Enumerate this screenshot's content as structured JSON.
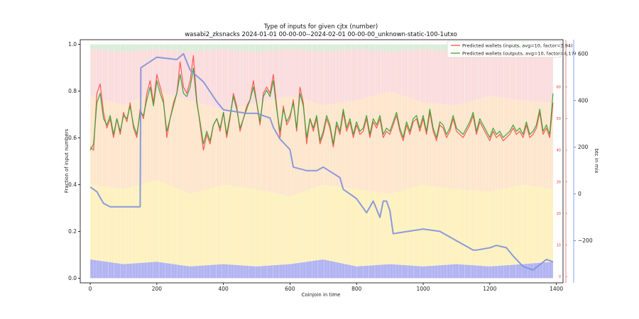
{
  "chart_data": {
    "type": "line",
    "title": "Type of inputs for given cjtx (number)",
    "subtitle": "wasabi2_zksnacks 2024-01-01 00-00-00--2024-02-01 00-00-00_unknown-static-100-1utxo",
    "xlabel": "Coinjoin in time",
    "ylabel": "Fraction of input numbers",
    "y2label": "btc in mix",
    "xlim": [
      -30,
      1420
    ],
    "ylim": [
      -0.02,
      1.02
    ],
    "y2lim": [
      -380,
      660
    ],
    "y3lim": [
      -2,
      75
    ],
    "x_ticks": [
      0,
      200,
      400,
      600,
      800,
      1000,
      1200,
      1400
    ],
    "y_ticks": [
      "0.0",
      "0.2",
      "0.4",
      "0.6",
      "0.8",
      "1.0"
    ],
    "y2_ticks": [
      -200,
      0,
      200,
      400,
      600
    ],
    "y2_tick_labels": [
      "−200",
      "0",
      "200",
      "400",
      "600"
    ],
    "y3_ticks": [
      0,
      10,
      20,
      30,
      40,
      50,
      60,
      70
    ],
    "legend_position": "top-right",
    "colors": {
      "wallets_inputs": "#ff4040",
      "wallets_outputs": "#2ca02c",
      "btc_in_mix": "#8090dd",
      "axis_right": "#4169e1",
      "axis_wallets": "#e33c3c",
      "band_bottom": "#a8acf0",
      "band_middle": "#fdf0b8",
      "band_upper": "#fce0c0",
      "band_top": "#f9d4d4",
      "band_cap": "#cfe8cf"
    },
    "series": [
      {
        "name": "Predicted wallets (inputs, avg=10, factor=3.94)",
        "axis": "wallets",
        "x": [
          0,
          10,
          20,
          30,
          40,
          50,
          60,
          70,
          80,
          90,
          100,
          110,
          120,
          130,
          140,
          150,
          160,
          170,
          180,
          190,
          200,
          210,
          220,
          230,
          240,
          250,
          260,
          270,
          280,
          290,
          300,
          310,
          320,
          330,
          340,
          350,
          360,
          370,
          380,
          390,
          400,
          410,
          420,
          430,
          440,
          450,
          460,
          470,
          480,
          490,
          500,
          510,
          520,
          530,
          540,
          550,
          560,
          570,
          580,
          590,
          600,
          610,
          620,
          630,
          640,
          650,
          660,
          670,
          680,
          690,
          700,
          710,
          720,
          730,
          740,
          750,
          760,
          770,
          780,
          790,
          800,
          810,
          820,
          830,
          840,
          850,
          860,
          870,
          880,
          890,
          900,
          910,
          920,
          930,
          940,
          950,
          960,
          970,
          980,
          990,
          1000,
          1010,
          1020,
          1030,
          1040,
          1050,
          1060,
          1070,
          1080,
          1090,
          1100,
          1110,
          1120,
          1130,
          1140,
          1150,
          1160,
          1170,
          1180,
          1190,
          1200,
          1210,
          1220,
          1230,
          1240,
          1250,
          1260,
          1270,
          1280,
          1290,
          1300,
          1310,
          1320,
          1330,
          1340,
          1350,
          1360,
          1370,
          1380,
          1390
        ],
        "values": [
          41,
          40,
          58,
          61,
          52,
          47,
          50,
          44,
          50,
          45,
          52,
          49,
          55,
          47,
          44,
          53,
          50,
          58,
          62,
          55,
          64,
          60,
          56,
          44,
          50,
          55,
          58,
          68,
          60,
          58,
          62,
          70,
          56,
          48,
          40,
          45,
          42,
          48,
          50,
          46,
          52,
          44,
          50,
          58,
          54,
          46,
          50,
          54,
          56,
          62,
          55,
          48,
          58,
          60,
          58,
          64,
          54,
          44,
          54,
          48,
          50,
          56,
          46,
          60,
          55,
          42,
          50,
          46,
          50,
          42,
          45,
          50,
          47,
          41,
          48,
          45,
          52,
          46,
          49,
          44,
          48,
          45,
          46,
          50,
          44,
          49,
          47,
          50,
          44,
          46,
          45,
          48,
          51,
          46,
          43,
          48,
          45,
          49,
          50,
          46,
          50,
          45,
          52,
          46,
          43,
          48,
          47,
          44,
          46,
          50,
          46,
          45,
          44,
          46,
          48,
          51,
          45,
          49,
          47,
          45,
          43,
          46,
          44,
          45,
          43,
          44,
          45,
          47,
          45,
          46,
          44,
          48,
          44,
          45,
          47,
          52,
          45,
          47,
          44,
          55
        ]
      },
      {
        "name": "Predicted wallets (outputs, avg=10, factor=4.17)",
        "axis": "wallets",
        "x": [
          0,
          10,
          20,
          30,
          40,
          50,
          60,
          70,
          80,
          90,
          100,
          110,
          120,
          130,
          140,
          150,
          160,
          170,
          180,
          190,
          200,
          210,
          220,
          230,
          240,
          250,
          260,
          270,
          280,
          290,
          300,
          310,
          320,
          330,
          340,
          350,
          360,
          370,
          380,
          390,
          400,
          410,
          420,
          430,
          440,
          450,
          460,
          470,
          480,
          490,
          500,
          510,
          520,
          530,
          540,
          550,
          560,
          570,
          580,
          590,
          600,
          610,
          620,
          630,
          640,
          650,
          660,
          670,
          680,
          690,
          700,
          710,
          720,
          730,
          740,
          750,
          760,
          770,
          780,
          790,
          800,
          810,
          820,
          830,
          840,
          850,
          860,
          870,
          880,
          890,
          900,
          910,
          920,
          930,
          940,
          950,
          960,
          970,
          980,
          990,
          1000,
          1010,
          1020,
          1030,
          1040,
          1050,
          1060,
          1070,
          1080,
          1090,
          1100,
          1110,
          1120,
          1130,
          1140,
          1150,
          1160,
          1170,
          1180,
          1190,
          1200,
          1210,
          1220,
          1230,
          1240,
          1250,
          1260,
          1270,
          1280,
          1290,
          1300,
          1310,
          1320,
          1330,
          1340,
          1350,
          1360,
          1370,
          1380,
          1390
        ],
        "values": [
          40,
          42,
          55,
          58,
          50,
          48,
          51,
          45,
          50,
          46,
          51,
          50,
          54,
          48,
          45,
          52,
          51,
          56,
          60,
          54,
          62,
          58,
          55,
          46,
          50,
          54,
          58,
          64,
          58,
          57,
          60,
          66,
          55,
          49,
          42,
          46,
          43,
          48,
          50,
          47,
          52,
          45,
          51,
          57,
          53,
          47,
          50,
          53,
          56,
          60,
          55,
          49,
          57,
          59,
          57,
          62,
          53,
          46,
          53,
          49,
          51,
          55,
          47,
          58,
          54,
          44,
          50,
          47,
          51,
          43,
          46,
          51,
          48,
          42,
          49,
          46,
          53,
          47,
          50,
          45,
          49,
          46,
          47,
          51,
          45,
          50,
          48,
          51,
          45,
          47,
          46,
          49,
          52,
          47,
          44,
          49,
          46,
          50,
          51,
          47,
          51,
          46,
          53,
          47,
          44,
          49,
          48,
          45,
          47,
          51,
          47,
          46,
          45,
          47,
          49,
          52,
          46,
          50,
          48,
          46,
          44,
          47,
          45,
          46,
          44,
          45,
          46,
          48,
          46,
          47,
          45,
          49,
          45,
          46,
          48,
          53,
          46,
          48,
          45,
          58
        ]
      },
      {
        "name": "btc in mix",
        "axis": "right",
        "x": [
          0,
          20,
          40,
          60,
          100,
          150,
          152,
          200,
          260,
          280,
          300,
          340,
          380,
          400,
          470,
          500,
          540,
          550,
          570,
          600,
          610,
          650,
          680,
          700,
          750,
          760,
          790,
          800,
          830,
          850,
          870,
          880,
          890,
          900,
          910,
          930,
          1000,
          1050,
          1100,
          1150,
          1160,
          1200,
          1220,
          1250,
          1270,
          1300,
          1330,
          1370,
          1390
        ],
        "values": [
          30,
          10,
          -40,
          -55,
          -55,
          -55,
          540,
          585,
          575,
          600,
          530,
          480,
          395,
          360,
          345,
          345,
          325,
          285,
          235,
          190,
          115,
          100,
          100,
          115,
          70,
          20,
          -10,
          -20,
          -80,
          -30,
          -100,
          -30,
          -30,
          -70,
          -170,
          -165,
          -150,
          -160,
          -200,
          -240,
          -240,
          -230,
          -220,
          -230,
          -265,
          -310,
          -325,
          -280,
          -290
        ]
      }
    ],
    "bands": {
      "x": [
        0,
        100,
        200,
        300,
        400,
        500,
        600,
        700,
        800,
        900,
        1000,
        1100,
        1200,
        1300,
        1390
      ],
      "bottom": [
        0.08,
        0.06,
        0.07,
        0.05,
        0.06,
        0.05,
        0.06,
        0.08,
        0.05,
        0.06,
        0.05,
        0.06,
        0.05,
        0.06,
        0.07
      ],
      "middle": [
        0.4,
        0.38,
        0.42,
        0.36,
        0.4,
        0.38,
        0.35,
        0.4,
        0.38,
        0.36,
        0.4,
        0.38,
        0.37,
        0.4,
        0.38
      ],
      "upper": [
        0.78,
        0.74,
        0.8,
        0.76,
        0.72,
        0.75,
        0.78,
        0.74,
        0.76,
        0.8,
        0.75,
        0.74,
        0.78,
        0.76,
        0.75
      ],
      "top": [
        0.98,
        0.97,
        0.98,
        0.97,
        0.98,
        0.97,
        0.98,
        0.97,
        0.98,
        0.97,
        0.98,
        0.97,
        0.98,
        0.97,
        0.98
      ]
    }
  }
}
